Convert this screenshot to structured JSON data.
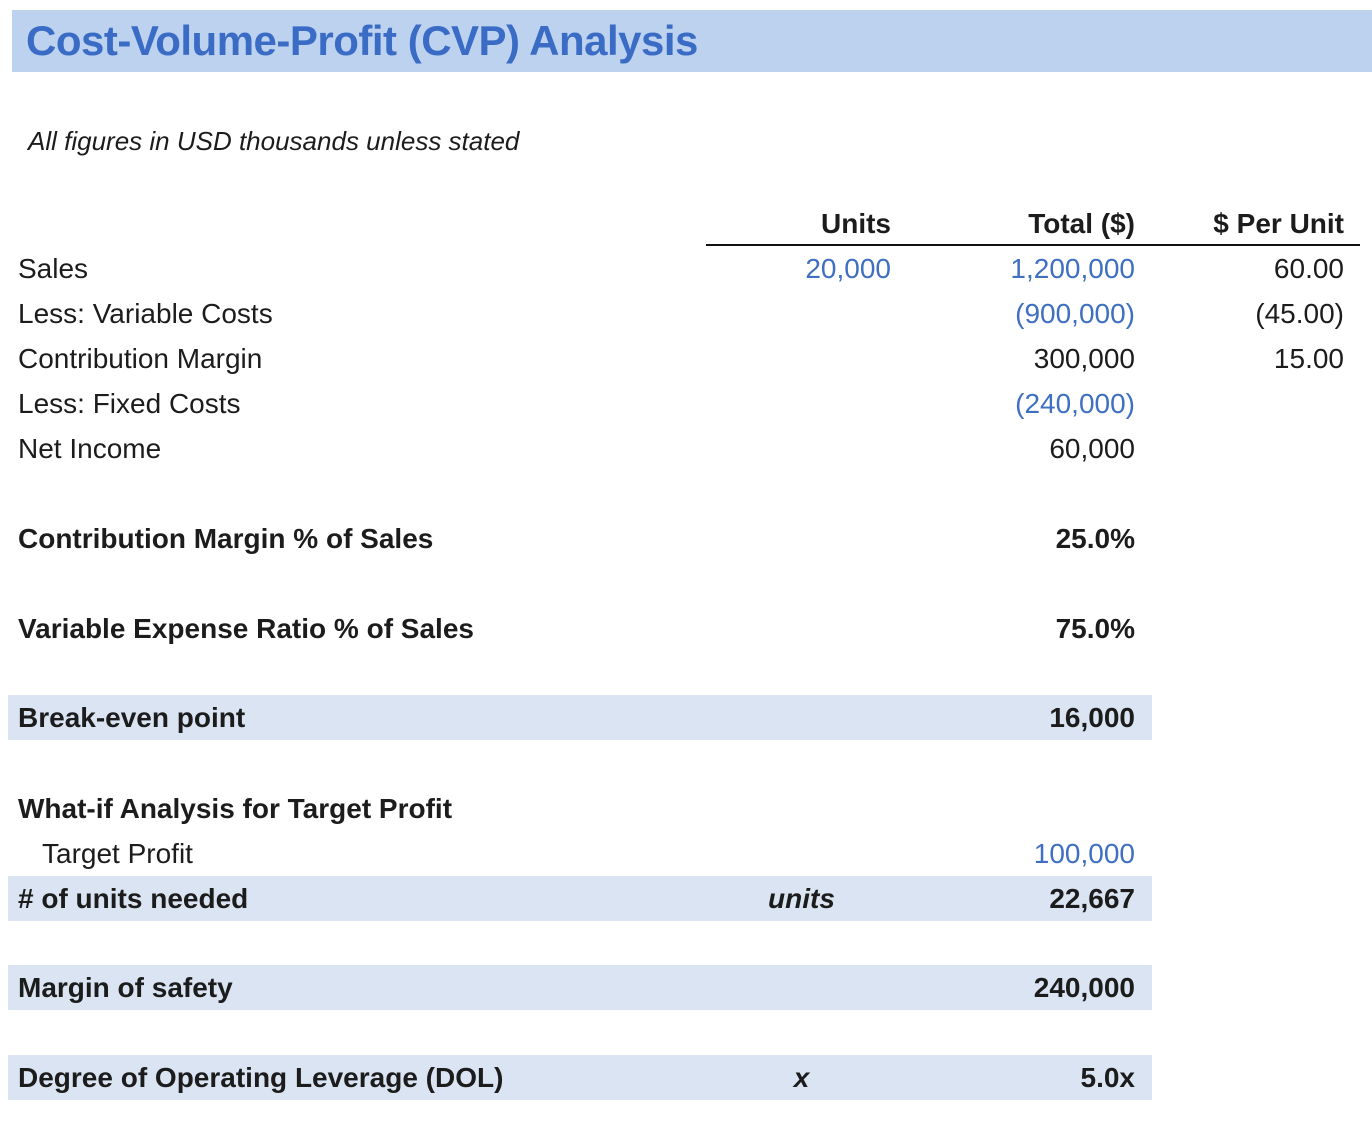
{
  "title": "Cost-Volume-Profit (CVP) Analysis",
  "subtitle": "All figures in USD thousands unless stated",
  "colors": {
    "title_bar_bg": "#BDD2EE",
    "title_text": "#3A6CC5",
    "input_blue": "#3F6FC1",
    "band_bg": "#DAE4F3",
    "header_rule": "#111111",
    "text": "#1C1C1C"
  },
  "income_statement": {
    "headers": {
      "units": "Units",
      "total": "Total ($)",
      "per_unit": "$ Per Unit"
    },
    "rows": [
      {
        "label": "Sales",
        "units": "20,000",
        "total": "1,200,000",
        "per_unit": "60.00"
      },
      {
        "label": "Less: Variable Costs",
        "units": "",
        "total": "(900,000)",
        "per_unit": "(45.00)"
      },
      {
        "label": "Contribution Margin",
        "units": "",
        "total": "300,000",
        "per_unit": "15.00"
      },
      {
        "label": "Less: Fixed Costs",
        "units": "",
        "total": "(240,000)",
        "per_unit": ""
      },
      {
        "label": "Net Income",
        "units": "",
        "total": "60,000",
        "per_unit": ""
      }
    ]
  },
  "metrics": {
    "cm_percent": {
      "label": "Contribution Margin % of Sales",
      "value": "25.0%"
    },
    "ver_percent": {
      "label": "Variable Expense Ratio % of Sales",
      "value": "75.0%"
    },
    "break_even": {
      "label": "Break-even point",
      "value": "16,000"
    }
  },
  "what_if": {
    "heading": "What-if Analysis for Target Profit",
    "target_profit": {
      "label": "Target Profit",
      "value": "100,000"
    },
    "units_needed": {
      "label": "# of units needed",
      "unit_label": "units",
      "value": "22,667"
    }
  },
  "margin_of_safety": {
    "label": "Margin of safety",
    "value": "240,000"
  },
  "dol": {
    "label": "Degree of Operating Leverage (DOL)",
    "unit_label": "x",
    "value": "5.0x"
  }
}
